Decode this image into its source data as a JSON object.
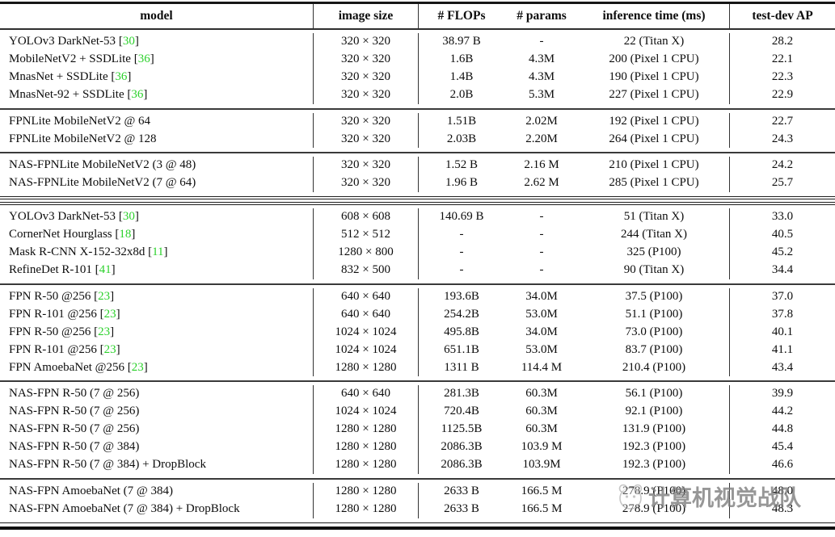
{
  "table": {
    "columns": [
      {
        "key": "model",
        "label": "model"
      },
      {
        "key": "image_size",
        "label": "image size"
      },
      {
        "key": "flops",
        "label": "# FLOPs"
      },
      {
        "key": "params",
        "label": "# params"
      },
      {
        "key": "time",
        "label": "inference time (ms)"
      },
      {
        "key": "ap",
        "label": "test-dev AP"
      }
    ],
    "fields": [
      "image_size",
      "flops",
      "params",
      "time",
      "ap"
    ],
    "citation_brackets": {
      "open": "[",
      "close": "]"
    },
    "sections": [
      {
        "groups": [
          {
            "rows": [
              {
                "model": "YOLOv3 DarkNet-53",
                "citation": "30",
                "image_size": "320 × 320",
                "flops": "38.97 B",
                "params": "-",
                "time": "22 (Titan X)",
                "ap": "28.2"
              },
              {
                "model": "MobileNetV2 + SSDLite",
                "citation": "36",
                "image_size": "320 × 320",
                "flops": "1.6B",
                "params": "4.3M",
                "time": "200 (Pixel 1 CPU)",
                "ap": "22.1"
              },
              {
                "model": "MnasNet + SSDLite",
                "citation": "36",
                "image_size": "320 × 320",
                "flops": "1.4B",
                "params": "4.3M",
                "time": "190 (Pixel 1 CPU)",
                "ap": "22.3"
              },
              {
                "model": "MnasNet-92 + SSDLite",
                "citation": "36",
                "image_size": "320 × 320",
                "flops": "2.0B",
                "params": "5.3M",
                "time": "227 (Pixel 1 CPU)",
                "ap": "22.9"
              }
            ]
          },
          {
            "rows": [
              {
                "model": "FPNLite MobileNetV2  @ 64",
                "citation": "",
                "image_size": "320 × 320",
                "flops": "1.51B",
                "params": "2.02M",
                "time": "192 (Pixel 1 CPU)",
                "ap": "22.7"
              },
              {
                "model": "FPNLite MobileNetV2  @ 128",
                "citation": "",
                "image_size": "320 × 320",
                "flops": "2.03B",
                "params": "2.20M",
                "time": "264 (Pixel 1 CPU)",
                "ap": "24.3"
              }
            ]
          },
          {
            "rows": [
              {
                "model": "NAS-FPNLite MobileNetV2 (3 @ 48)",
                "citation": "",
                "image_size": "320 × 320",
                "flops": "1.52 B",
                "params": "2.16 M",
                "time": "210 (Pixel 1 CPU)",
                "ap": "24.2"
              },
              {
                "model": "NAS-FPNLite MobileNetV2 (7 @ 64)",
                "citation": "",
                "image_size": "320 × 320",
                "flops": "1.96 B",
                "params": "2.62 M",
                "time": "285 (Pixel 1 CPU)",
                "ap": "25.7"
              }
            ]
          }
        ]
      },
      {
        "groups": [
          {
            "rows": [
              {
                "model": "YOLOv3 DarkNet-53",
                "citation": "30",
                "image_size": "608 × 608",
                "flops": "140.69 B",
                "params": "-",
                "time": "51 (Titan X)",
                "ap": "33.0"
              },
              {
                "model": "CornerNet Hourglass",
                "citation": "18",
                "image_size": "512 × 512",
                "flops": "-",
                "params": "-",
                "time": "244 (Titan X)",
                "ap": "40.5"
              },
              {
                "model": "Mask R-CNN X-152-32x8d",
                "citation": "11",
                "image_size": "1280 × 800",
                "flops": "-",
                "params": "-",
                "time": "325 (P100)",
                "ap": "45.2"
              },
              {
                "model": "RefineDet R-101",
                "citation": "41",
                "image_size": "832 × 500",
                "flops": "-",
                "params": "-",
                "time": "90 (Titan X)",
                "ap": "34.4"
              }
            ]
          },
          {
            "rows": [
              {
                "model": "FPN R-50 @256",
                "citation": "23",
                "image_size": "640 × 640",
                "flops": "193.6B",
                "params": "34.0M",
                "time": "37.5 (P100)",
                "ap": "37.0"
              },
              {
                "model": "FPN R-101 @256",
                "citation": "23",
                "image_size": "640 × 640",
                "flops": "254.2B",
                "params": "53.0M",
                "time": "51.1 (P100)",
                "ap": "37.8"
              },
              {
                "model": "FPN R-50 @256",
                "citation": "23",
                "image_size": "1024 × 1024",
                "flops": "495.8B",
                "params": "34.0M",
                "time": "73.0 (P100)",
                "ap": "40.1"
              },
              {
                "model": "FPN R-101 @256",
                "citation": "23",
                "image_size": "1024 × 1024",
                "flops": "651.1B",
                "params": "53.0M",
                "time": "83.7 (P100)",
                "ap": "41.1"
              },
              {
                "model": "FPN AmoebaNet @256",
                "citation": "23",
                "image_size": "1280 × 1280",
                "flops": "1311 B",
                "params": "114.4 M",
                "time": "210.4 (P100)",
                "ap": "43.4"
              }
            ]
          },
          {
            "rows": [
              {
                "model": "NAS-FPN R-50 (7 @ 256)",
                "citation": "",
                "image_size": "640 × 640",
                "flops": "281.3B",
                "params": "60.3M",
                "time": "56.1 (P100)",
                "ap": "39.9"
              },
              {
                "model": "NAS-FPN R-50 (7 @ 256)",
                "citation": "",
                "image_size": "1024 × 1024",
                "flops": "720.4B",
                "params": "60.3M",
                "time": "92.1 (P100)",
                "ap": "44.2"
              },
              {
                "model": "NAS-FPN R-50 (7 @ 256)",
                "citation": "",
                "image_size": "1280 × 1280",
                "flops": "1125.5B",
                "params": "60.3M",
                "time": "131.9 (P100)",
                "ap": "44.8"
              },
              {
                "model": "NAS-FPN R-50 (7 @ 384)",
                "citation": "",
                "image_size": "1280 × 1280",
                "flops": "2086.3B",
                "params": "103.9 M",
                "time": "192.3 (P100)",
                "ap": "45.4"
              },
              {
                "model": "NAS-FPN R-50 (7 @ 384) + DropBlock",
                "citation": "",
                "image_size": "1280 × 1280",
                "flops": "2086.3B",
                "params": "103.9M",
                "time": "192.3 (P100)",
                "ap": "46.6"
              }
            ]
          },
          {
            "rows": [
              {
                "model": "NAS-FPN AmoebaNet (7 @ 384)",
                "citation": "",
                "image_size": "1280 × 1280",
                "flops": "2633 B",
                "params": "166.5 M",
                "time": "278.9 (P100)",
                "ap": "48.0"
              },
              {
                "model": "NAS-FPN AmoebaNet (7 @ 384) + DropBlock",
                "citation": "",
                "image_size": "1280 × 1280",
                "flops": "2633 B",
                "params": "166.5 M",
                "time": "278.9 (P100)",
                "ap": "48.3"
              }
            ]
          }
        ]
      }
    ]
  },
  "colors": {
    "citation_green": "#2bd12b",
    "rule_dark": "#161616"
  },
  "watermark": {
    "text": "计算机视觉战队",
    "logo": "mascot-face-icon"
  }
}
